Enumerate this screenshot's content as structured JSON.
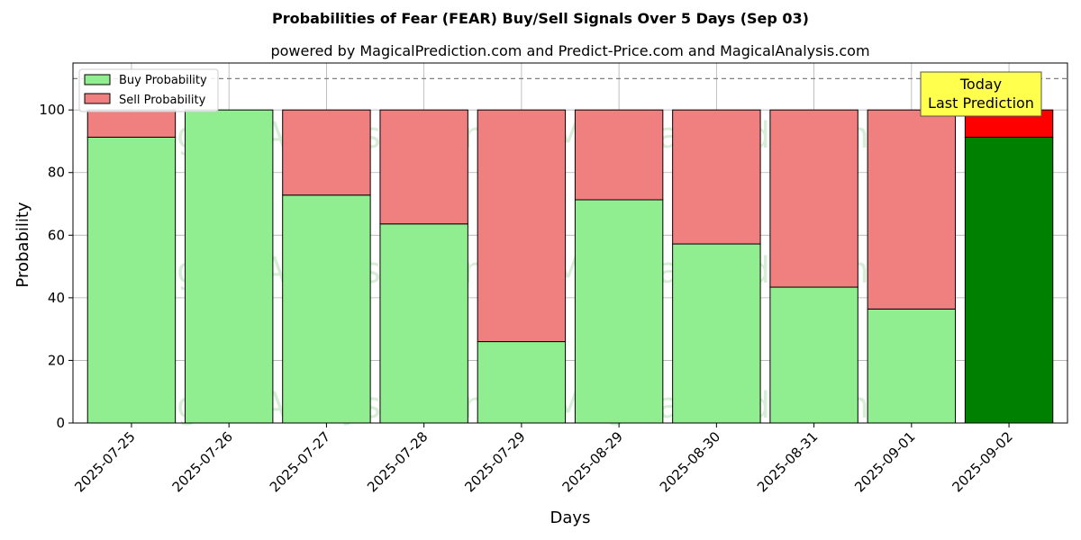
{
  "chart_data": {
    "type": "bar",
    "stacked": true,
    "title": "Probabilities of Fear (FEAR) Buy/Sell Signals Over 5 Days (Sep 03)",
    "subtitle": "powered by MagicalPrediction.com and Predict-Price.com and MagicalAnalysis.com",
    "xlabel": "Days",
    "ylabel": "Probability",
    "ylim": [
      0,
      115
    ],
    "yticks": [
      0,
      20,
      40,
      60,
      80,
      100
    ],
    "reference_line": 110,
    "grid": true,
    "legend_position": "top-left",
    "categories": [
      "2025-07-25",
      "2025-07-26",
      "2025-07-27",
      "2025-07-28",
      "2025-07-29",
      "2025-08-29",
      "2025-08-30",
      "2025-08-31",
      "2025-09-01",
      "2025-09-02"
    ],
    "series": [
      {
        "name": "Buy Probability",
        "values": [
          91.3,
          100,
          72.8,
          63.6,
          26,
          71.3,
          57.2,
          43.4,
          36.4,
          91.3
        ],
        "color": "#90ee90",
        "highlight_color": "#008000"
      },
      {
        "name": "Sell Probability",
        "values": [
          8.7,
          0,
          27.2,
          36.4,
          74,
          28.7,
          42.8,
          56.6,
          63.6,
          8.7
        ],
        "color": "#f08080",
        "highlight_color": "#ff0000"
      }
    ],
    "highlight_index": 9,
    "annotation": {
      "line1": "Today",
      "line2": "Last Prediction",
      "background": "#ffff4d"
    },
    "watermarks": [
      "MagicalAnalysis.com",
      "MagicalPrediction.com"
    ]
  }
}
